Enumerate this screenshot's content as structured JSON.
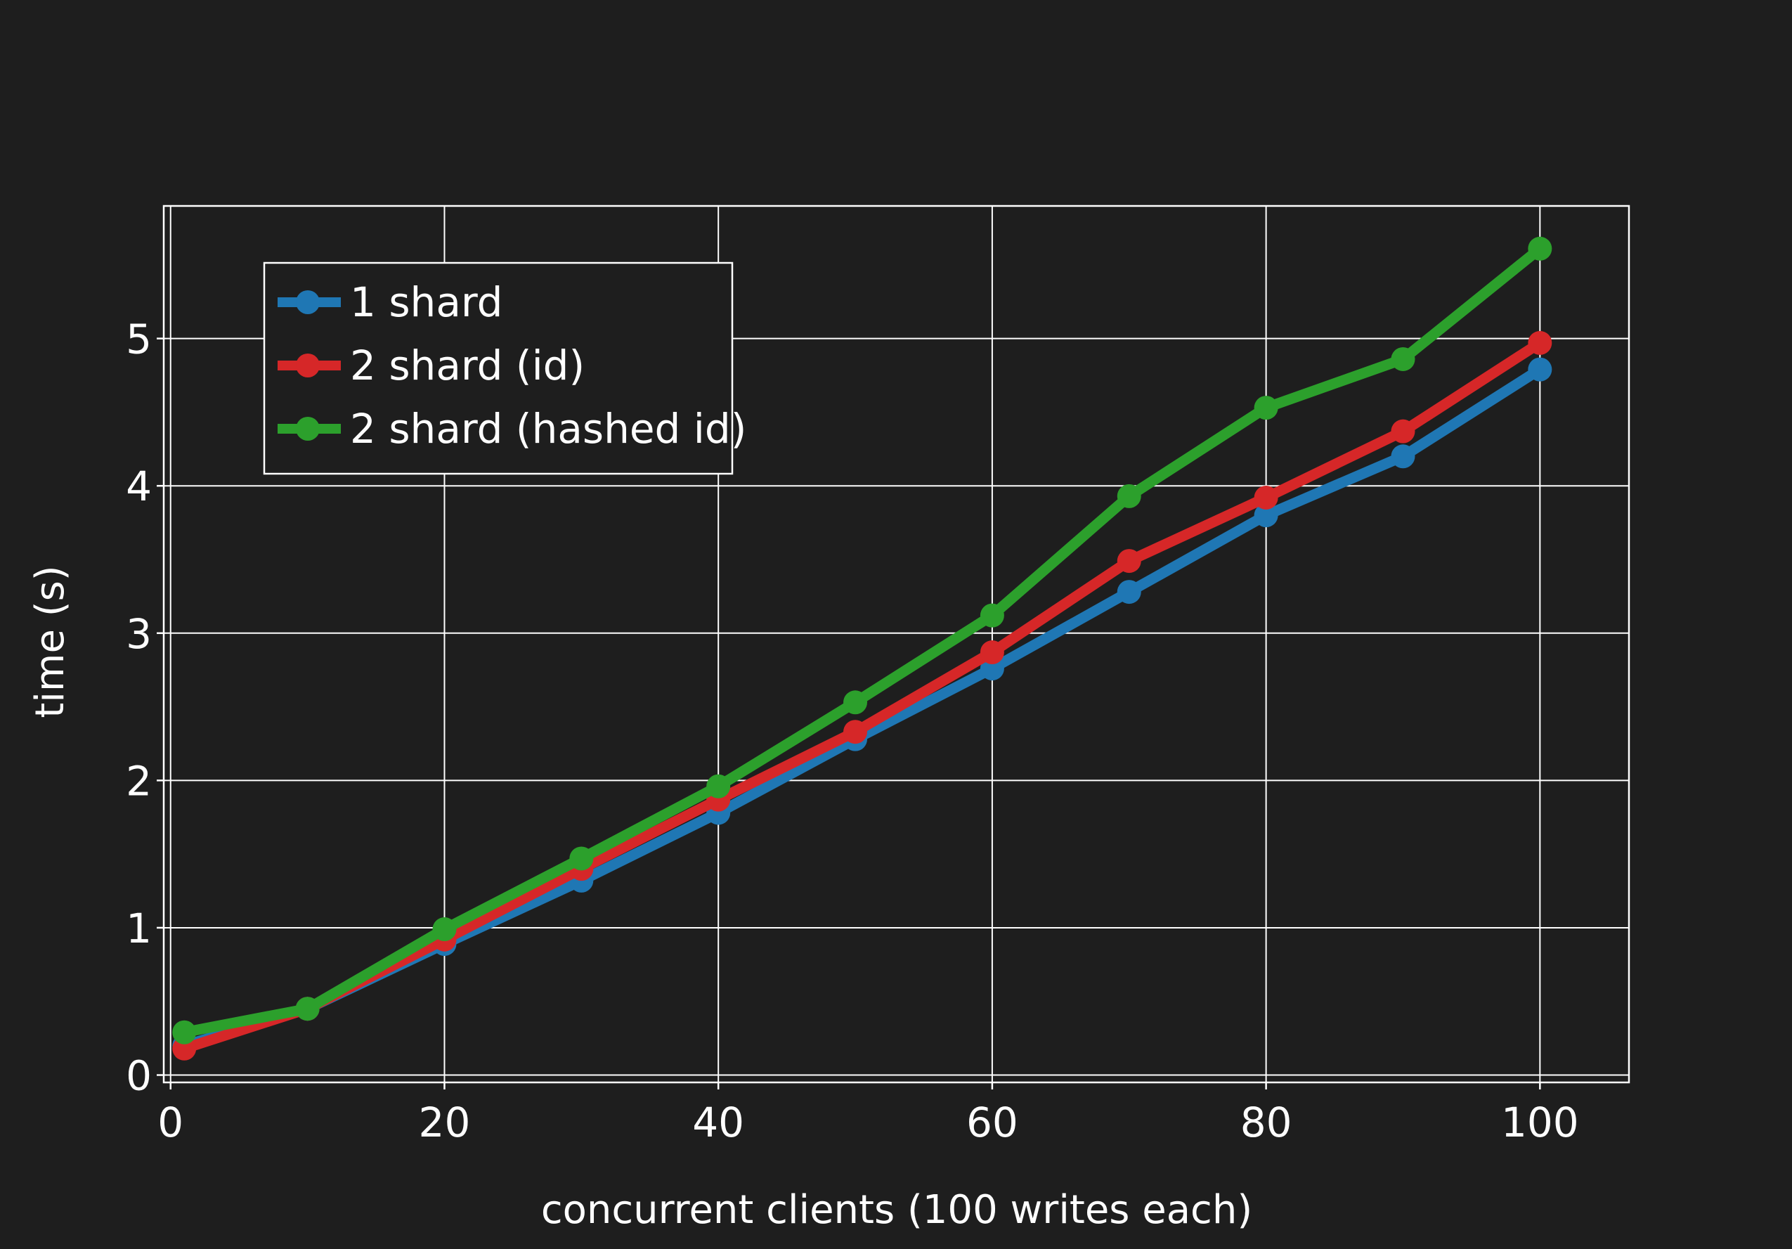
{
  "chart_data": {
    "type": "line",
    "title": "",
    "xlabel": "concurrent clients (100 writes each)",
    "ylabel": "time (s)",
    "xlim": [
      -0.5,
      106.5
    ],
    "ylim": [
      -0.05,
      5.9
    ],
    "xticks": [
      0,
      20,
      40,
      60,
      80,
      100
    ],
    "yticks": [
      0,
      1,
      2,
      3,
      4,
      5
    ],
    "grid": true,
    "legend_position": "top-left",
    "x": [
      1,
      10,
      20,
      30,
      40,
      50,
      60,
      70,
      80,
      90,
      100
    ],
    "series": [
      {
        "name": "1 shard",
        "color": "#1f77b4",
        "values": [
          0.2,
          0.45,
          0.89,
          1.32,
          1.78,
          2.28,
          2.76,
          3.28,
          3.8,
          4.2,
          4.79
        ]
      },
      {
        "name": "2 shard (id)",
        "color": "#d62728",
        "values": [
          0.18,
          0.45,
          0.92,
          1.4,
          1.87,
          2.33,
          2.87,
          3.49,
          3.92,
          4.37,
          4.97
        ]
      },
      {
        "name": "2 shard (hashed id)",
        "color": "#2ca02c",
        "values": [
          0.29,
          0.45,
          0.99,
          1.47,
          1.96,
          2.53,
          3.12,
          3.93,
          4.53,
          4.86,
          5.61
        ]
      }
    ]
  }
}
